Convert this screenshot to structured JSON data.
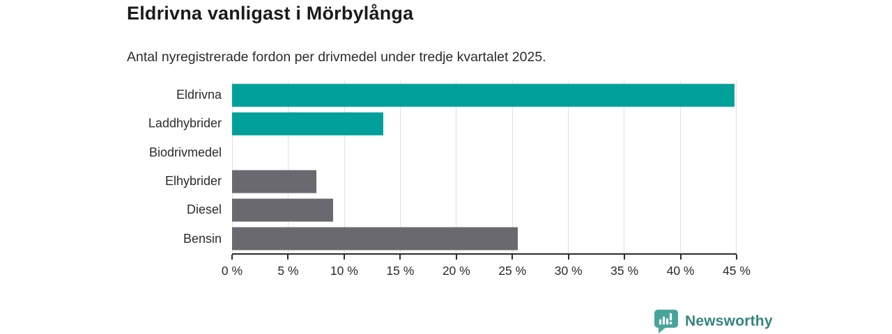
{
  "header": {
    "title": "Eldrivna vanligast i Mörbylånga",
    "subtitle": "Antal nyregistrerade fordon per drivmedel under tredje kvartalet 2025."
  },
  "chart_data": {
    "type": "bar",
    "orientation": "horizontal",
    "title": "Eldrivna vanligast i Mörbylånga",
    "subtitle": "Antal nyregistrerade fordon per drivmedel under tredje kvartalet 2025.",
    "categories": [
      "Eldrivna",
      "Laddhybrider",
      "Biodrivmedel",
      "Elhybrider",
      "Diesel",
      "Bensin"
    ],
    "values": [
      44.9,
      13.5,
      0,
      7.5,
      9.0,
      25.5
    ],
    "bar_colors": [
      "#00A09A",
      "#00A09A",
      "#00A09A",
      "#6A6970",
      "#6A6970",
      "#6A6970"
    ],
    "xlabel": "",
    "ylabel": "",
    "xlim": [
      0,
      45
    ],
    "x_ticks": [
      0,
      5,
      10,
      15,
      20,
      25,
      30,
      35,
      40,
      45
    ],
    "x_tick_suffix": " %",
    "grid": true,
    "legend": false
  },
  "footer": {
    "brand": "Newsworthy"
  },
  "colors": {
    "accent_teal": "#00A09A",
    "bar_gray": "#6A6970",
    "grid_line": "#E0E0E0",
    "axis_line": "#2B2B2B",
    "logo_icon_teal": "#48A49B",
    "logo_text_teal": "#35837E",
    "text_dark": "#1B1B1B"
  }
}
